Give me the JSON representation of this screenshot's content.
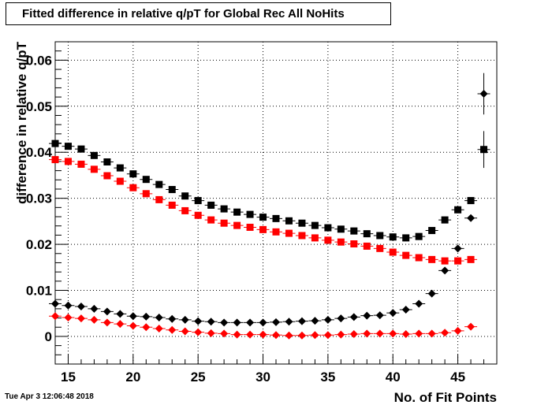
{
  "title": "Fitted difference in relative q/pT for Global Rec All NoHits",
  "timestamp": "Tue Apr  3 12:06:48 2018",
  "chart_data": {
    "type": "scatter",
    "title": "Fitted difference in relative q/pT for Global Rec All NoHits",
    "xlabel": "No. of Fit Points",
    "ylabel": "difference in relative q/pT",
    "xlim": [
      14,
      48
    ],
    "ylim": [
      -0.006,
      0.064
    ],
    "x_ticks": [
      "15",
      "20",
      "25",
      "30",
      "35",
      "40",
      "45"
    ],
    "y_ticks": [
      "0",
      "0.01",
      "0.02",
      "0.03",
      "0.04",
      "0.05",
      "0.06"
    ],
    "grid": true,
    "series": [
      {
        "marker": "square",
        "color": "#000000",
        "points": [
          [
            14,
            0.0419
          ],
          [
            15,
            0.0413
          ],
          [
            16,
            0.0407
          ],
          [
            17,
            0.0393
          ],
          [
            18,
            0.0379
          ],
          [
            19,
            0.0366
          ],
          [
            20,
            0.0353
          ],
          [
            21,
            0.0341
          ],
          [
            22,
            0.033
          ],
          [
            23,
            0.0319
          ],
          [
            24,
            0.0305
          ],
          [
            25,
            0.0295
          ],
          [
            26,
            0.0285
          ],
          [
            27,
            0.0277
          ],
          [
            28,
            0.027
          ],
          [
            29,
            0.0265
          ],
          [
            30,
            0.0259
          ],
          [
            31,
            0.0256
          ],
          [
            32,
            0.0251
          ],
          [
            33,
            0.0246
          ],
          [
            34,
            0.0241
          ],
          [
            35,
            0.0236
          ],
          [
            36,
            0.0233
          ],
          [
            37,
            0.0229
          ],
          [
            38,
            0.0223
          ],
          [
            39,
            0.0219
          ],
          [
            40,
            0.0216
          ],
          [
            41,
            0.0214
          ],
          [
            42,
            0.0217
          ],
          [
            43,
            0.023
          ],
          [
            44,
            0.0253
          ],
          [
            45,
            0.0275
          ],
          [
            46,
            0.0295
          ],
          [
            47,
            0.0406
          ]
        ],
        "errors": [
          [
            47,
            0.004
          ]
        ]
      },
      {
        "marker": "square",
        "color": "#ff0000",
        "points": [
          [
            14,
            0.0384
          ],
          [
            15,
            0.038
          ],
          [
            16,
            0.0374
          ],
          [
            17,
            0.0363
          ],
          [
            18,
            0.0349
          ],
          [
            19,
            0.0337
          ],
          [
            20,
            0.0323
          ],
          [
            21,
            0.031
          ],
          [
            22,
            0.0297
          ],
          [
            23,
            0.0285
          ],
          [
            24,
            0.0273
          ],
          [
            25,
            0.0263
          ],
          [
            26,
            0.0253
          ],
          [
            27,
            0.0246
          ],
          [
            28,
            0.0241
          ],
          [
            29,
            0.0237
          ],
          [
            30,
            0.0232
          ],
          [
            31,
            0.0227
          ],
          [
            32,
            0.0224
          ],
          [
            33,
            0.0219
          ],
          [
            34,
            0.0214
          ],
          [
            35,
            0.0209
          ],
          [
            36,
            0.0205
          ],
          [
            37,
            0.0201
          ],
          [
            38,
            0.0196
          ],
          [
            39,
            0.0191
          ],
          [
            40,
            0.0183
          ],
          [
            41,
            0.0176
          ],
          [
            42,
            0.0171
          ],
          [
            43,
            0.0167
          ],
          [
            44,
            0.0164
          ],
          [
            45,
            0.0164
          ],
          [
            46,
            0.0167
          ]
        ]
      },
      {
        "marker": "diamond",
        "color": "#000000",
        "points": [
          [
            14,
            0.0071
          ],
          [
            15,
            0.0067
          ],
          [
            16,
            0.0065
          ],
          [
            17,
            0.006
          ],
          [
            18,
            0.0054
          ],
          [
            19,
            0.0049
          ],
          [
            20,
            0.0044
          ],
          [
            21,
            0.0043
          ],
          [
            22,
            0.0041
          ],
          [
            23,
            0.0038
          ],
          [
            24,
            0.0036
          ],
          [
            25,
            0.0033
          ],
          [
            26,
            0.0032
          ],
          [
            27,
            0.003
          ],
          [
            28,
            0.003
          ],
          [
            29,
            0.003
          ],
          [
            30,
            0.003
          ],
          [
            31,
            0.0031
          ],
          [
            32,
            0.0032
          ],
          [
            33,
            0.0033
          ],
          [
            34,
            0.0034
          ],
          [
            35,
            0.0036
          ],
          [
            36,
            0.0039
          ],
          [
            37,
            0.0042
          ],
          [
            38,
            0.0045
          ],
          [
            39,
            0.0046
          ],
          [
            40,
            0.0051
          ],
          [
            41,
            0.0058
          ],
          [
            42,
            0.0071
          ],
          [
            43,
            0.0093
          ],
          [
            44,
            0.0143
          ],
          [
            45,
            0.0191
          ],
          [
            46,
            0.0257
          ],
          [
            47,
            0.0527
          ]
        ],
        "errors": [
          [
            47,
            0.0045
          ]
        ]
      },
      {
        "marker": "diamond",
        "color": "#ff0000",
        "points": [
          [
            14,
            0.0044
          ],
          [
            15,
            0.0041
          ],
          [
            16,
            0.0039
          ],
          [
            17,
            0.0036
          ],
          [
            18,
            0.003
          ],
          [
            19,
            0.0027
          ],
          [
            20,
            0.0023
          ],
          [
            21,
            0.002
          ],
          [
            22,
            0.0017
          ],
          [
            23,
            0.0014
          ],
          [
            24,
            0.0011
          ],
          [
            25,
            0.0009
          ],
          [
            26,
            0.0007
          ],
          [
            27,
            0.0006
          ],
          [
            28,
            0.0004
          ],
          [
            29,
            0.0004
          ],
          [
            30,
            0.0004
          ],
          [
            31,
            0.0003
          ],
          [
            32,
            0.0002
          ],
          [
            33,
            0.0002
          ],
          [
            34,
            0.0003
          ],
          [
            35,
            0.0003
          ],
          [
            36,
            0.0004
          ],
          [
            37,
            0.0005
          ],
          [
            38,
            0.0006
          ],
          [
            39,
            0.0006
          ],
          [
            40,
            0.0006
          ],
          [
            41,
            0.0005
          ],
          [
            42,
            0.0006
          ],
          [
            43,
            0.0006
          ],
          [
            44,
            0.0008
          ],
          [
            45,
            0.0012
          ],
          [
            46,
            0.0021
          ]
        ]
      }
    ]
  }
}
